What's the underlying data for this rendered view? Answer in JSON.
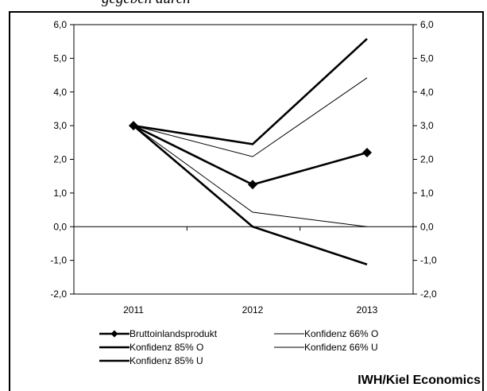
{
  "header": {
    "caption": "gegeben durch"
  },
  "footer": {
    "credit": "IWH/Kiel Economics"
  },
  "chart_data": {
    "type": "line",
    "categories": [
      "2011",
      "2012",
      "2013"
    ],
    "ylim": [
      -2.0,
      6.0
    ],
    "yticks": [
      "-2,0",
      "-1,0",
      "0,0",
      "1,0",
      "2,0",
      "3,0",
      "4,0",
      "5,0",
      "6,0"
    ],
    "grid": false,
    "legend_position": "bottom",
    "series": [
      {
        "name": "Bruttoinlandsprodukt",
        "values": [
          3.0,
          1.25,
          2.2
        ],
        "marker": "diamond",
        "stroke": "thick"
      },
      {
        "name": "Konfidenz 66% O",
        "values": [
          3.0,
          2.08,
          4.42
        ],
        "stroke": "thin"
      },
      {
        "name": "Konfidenz 85% O",
        "values": [
          3.0,
          2.45,
          5.58
        ],
        "stroke": "thick"
      },
      {
        "name": "Konfidenz 66% U",
        "values": [
          3.0,
          0.43,
          0.0
        ],
        "stroke": "thin"
      },
      {
        "name": "Konfidenz 85% U",
        "values": [
          3.0,
          0.0,
          -1.12
        ],
        "stroke": "thick"
      }
    ]
  }
}
